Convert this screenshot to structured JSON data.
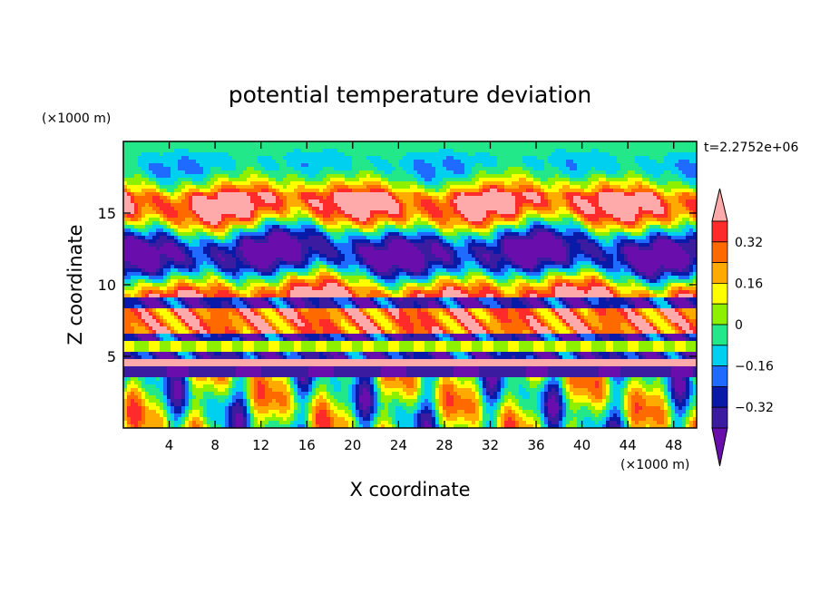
{
  "chart_data": {
    "type": "heatmap",
    "title": "potential temperature deviation",
    "xlabel": "X coordinate",
    "ylabel": "Z coordinate",
    "x_unit": "(×1000 m)",
    "y_unit": "(×1000 m)",
    "time_label": "t=2.2752e+06",
    "xlim": [
      0,
      50
    ],
    "ylim": [
      0,
      20
    ],
    "x_ticks": [
      4,
      8,
      12,
      16,
      20,
      24,
      28,
      32,
      36,
      40,
      44,
      48
    ],
    "y_ticks": [
      5,
      10,
      15
    ],
    "colorbar": {
      "levels": [
        -0.4,
        -0.32,
        -0.24,
        -0.16,
        -0.08,
        0,
        0.08,
        0.16,
        0.24,
        0.32,
        0.4
      ],
      "labeled_levels": [
        0.32,
        0.16,
        0,
        -0.16,
        -0.32
      ],
      "tick_labels": [
        "0.32",
        "0.16",
        "0",
        "−0.16",
        "−0.32"
      ],
      "colors": [
        "#6a0dad",
        "#3b1ca0",
        "#0a1aa8",
        "#1f6bff",
        "#00d0f0",
        "#22e88a",
        "#8cf000",
        "#ffff00",
        "#ffaa00",
        "#ff6a00",
        "#ff2a2a",
        "#ffaaaa"
      ],
      "extend": "both"
    },
    "grid": false,
    "legend": "colorbar-right"
  }
}
